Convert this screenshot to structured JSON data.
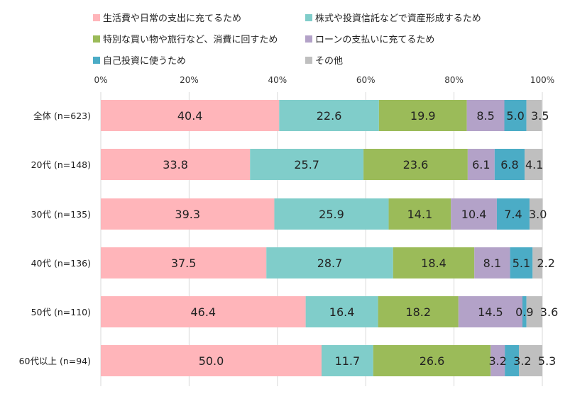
{
  "chart_data": {
    "type": "bar",
    "orientation": "horizontal",
    "stacked": true,
    "percent": true,
    "title": "",
    "xlabel": "",
    "ylabel": "",
    "xlim": [
      0,
      100
    ],
    "x_ticks": [
      "0%",
      "20%",
      "40%",
      "60%",
      "80%",
      "100%"
    ],
    "grid": true,
    "legend_position": "top",
    "categories": [
      "全体 (n=623)",
      "20代 (n=148)",
      "30代 (n=135)",
      "40代 (n=136)",
      "50代 (n=110)",
      "60代以上 (n=94)"
    ],
    "series": [
      {
        "name": "生活費や日常の支出に充てるため",
        "color": "#FFB5BA",
        "values": [
          40.4,
          33.8,
          39.3,
          37.5,
          46.4,
          50.0
        ]
      },
      {
        "name": "株式や投資信託などで資産形成するため",
        "color": "#80CDCA",
        "values": [
          22.6,
          25.7,
          25.9,
          28.7,
          16.4,
          11.7
        ]
      },
      {
        "name": "特別な買い物や旅行など、消費に回すため",
        "color": "#9BBB59",
        "values": [
          19.9,
          23.6,
          14.1,
          18.4,
          18.2,
          26.6
        ]
      },
      {
        "name": "ローンの支払いに充てるため",
        "color": "#B3A2C8",
        "values": [
          8.5,
          6.1,
          10.4,
          8.1,
          14.5,
          3.2
        ]
      },
      {
        "name": "自己投資に使うため",
        "color": "#4BACC6",
        "values": [
          5.0,
          6.8,
          7.4,
          5.1,
          0.9,
          3.2
        ]
      },
      {
        "name": "その他",
        "color": "#BFBFBF",
        "values": [
          3.5,
          4.1,
          3.0,
          2.2,
          3.6,
          5.3
        ]
      }
    ]
  }
}
